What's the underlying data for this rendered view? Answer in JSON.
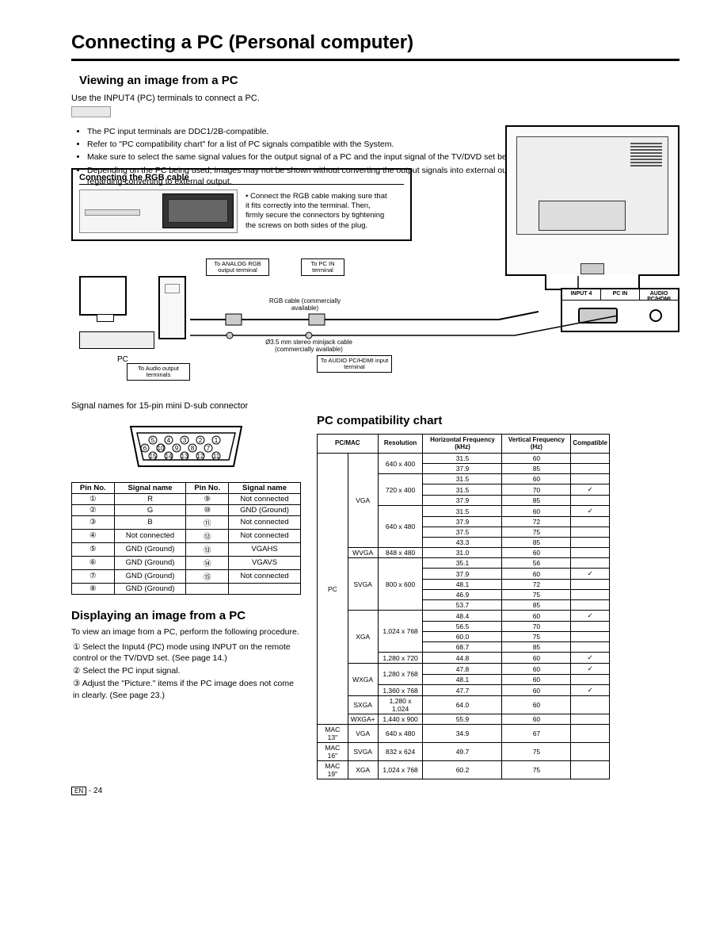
{
  "page_title": "Connecting a PC (Personal computer)",
  "section1": {
    "title": "Viewing an image from a PC",
    "intro": "Use the INPUT4 (PC) terminals to connect a PC.",
    "bullets": [
      "The PC input terminals are DDC1/2B-compatible.",
      "Refer to \"PC compatibility chart\" for a list of PC signals compatible with the System.",
      "Make sure to select the same signal values for the output signal of a PC and the input signal of the TV/DVD set before connecting with the PC. (See page 23.)",
      "Depending on the PC being used, images may not be shown without converting the output signals into external output. Please refer to your PC's manuals regarding converting to external output."
    ]
  },
  "rgb_box": {
    "title": "Connecting the RGB cable",
    "text": "Connect the RGB cable making sure that it fits correctly into the terminal. Then, firmly secure the connectors by tightening the screws on both sides of the plug."
  },
  "diagram": {
    "pc_label": "PC",
    "callout_rgb_out": "To ANALOG RGB output terminal",
    "callout_pc_in": "To PC IN terminal",
    "callout_audio_out": "To Audio output terminals",
    "callout_audio_in": "To AUDIO PC/HDMI input terminal",
    "wire_rgb": "RGB cable (commercially available)",
    "wire_audio": "Ø3.5 mm stereo minijack cable (commercially available)",
    "panel_labels": [
      "INPUT 4",
      "PC IN",
      "AUDIO PC/HDMI"
    ]
  },
  "connector_caption": "Signal names for 15-pin mini D-sub connector",
  "pin_table": {
    "headers": [
      "Pin No.",
      "Signal name",
      "Pin No.",
      "Signal name"
    ],
    "rows": [
      [
        "①",
        "R",
        "⑨",
        "Not connected"
      ],
      [
        "②",
        "G",
        "⑩",
        "GND (Ground)"
      ],
      [
        "③",
        "B",
        "⑪",
        "Not connected"
      ],
      [
        "④",
        "Not connected",
        "⑫",
        "Not connected"
      ],
      [
        "⑤",
        "GND (Ground)",
        "⑬",
        "VGAHS"
      ],
      [
        "⑥",
        "GND (Ground)",
        "⑭",
        "VGAVS"
      ],
      [
        "⑦",
        "GND (Ground)",
        "⑮",
        "Not connected"
      ],
      [
        "⑧",
        "GND (Ground)",
        "",
        ""
      ]
    ]
  },
  "section2": {
    "title": "Displaying an image from a PC",
    "intro": "To view an image from a PC, perform the following procedure.",
    "steps": [
      "① Select the Input4 (PC) mode using INPUT on the remote control or the TV/DVD set. (See page 14.)",
      "② Select the PC input signal.",
      "③ Adjust the \"Picture.\" items if the PC image does not come in clearly. (See page 23.)"
    ]
  },
  "compat": {
    "title": "PC compatibility chart",
    "headers": [
      "PC/MAC",
      "",
      "Resolution",
      "Horizontal Frequency (kHz)",
      "Vertical Frequency (Hz)",
      "Compatible"
    ],
    "rows": [
      [
        "PC",
        "VGA",
        "640 x 400",
        "31.5",
        "60",
        ""
      ],
      [
        "",
        "",
        "",
        "37.9",
        "85",
        ""
      ],
      [
        "",
        "",
        "720 x 400",
        "31.5",
        "60",
        ""
      ],
      [
        "",
        "",
        "",
        "31.5",
        "70",
        "✓"
      ],
      [
        "",
        "",
        "",
        "37.9",
        "85",
        ""
      ],
      [
        "",
        "",
        "640 x 480",
        "31.5",
        "60",
        "✓"
      ],
      [
        "",
        "",
        "",
        "37.9",
        "72",
        ""
      ],
      [
        "",
        "",
        "",
        "37.5",
        "75",
        ""
      ],
      [
        "",
        "",
        "",
        "43.3",
        "85",
        ""
      ],
      [
        "",
        "WVGA",
        "848 x 480",
        "31.0",
        "60",
        ""
      ],
      [
        "",
        "SVGA",
        "800 x 600",
        "35.1",
        "56",
        ""
      ],
      [
        "",
        "",
        "",
        "37.9",
        "60",
        "✓"
      ],
      [
        "",
        "",
        "",
        "48.1",
        "72",
        ""
      ],
      [
        "",
        "",
        "",
        "46.9",
        "75",
        ""
      ],
      [
        "",
        "",
        "",
        "53.7",
        "85",
        ""
      ],
      [
        "",
        "XGA",
        "1,024 x 768",
        "48.4",
        "60",
        "✓"
      ],
      [
        "",
        "",
        "",
        "56.5",
        "70",
        ""
      ],
      [
        "",
        "",
        "",
        "60.0",
        "75",
        ""
      ],
      [
        "",
        "",
        "",
        "68.7",
        "85",
        ""
      ],
      [
        "",
        "",
        "1,280 x 720",
        "44.8",
        "60",
        "✓"
      ],
      [
        "",
        "WXGA",
        "1,280 x 768",
        "47.8",
        "60",
        "✓"
      ],
      [
        "",
        "",
        "",
        "48.1",
        "60",
        ""
      ],
      [
        "",
        "",
        "1,360 x 768",
        "47.7",
        "60",
        "✓"
      ],
      [
        "",
        "SXGA",
        "1,280 x 1,024",
        "64.0",
        "60",
        ""
      ],
      [
        "",
        "WXGA+",
        "1,440 x 900",
        "55.9",
        "60",
        ""
      ],
      [
        "MAC 13\"",
        "VGA",
        "640 x 480",
        "34.9",
        "67",
        ""
      ],
      [
        "MAC 16\"",
        "SVGA",
        "832 x 624",
        "49.7",
        "75",
        ""
      ],
      [
        "MAC 19\"",
        "XGA",
        "1,024 x 768",
        "60.2",
        "75",
        ""
      ]
    ],
    "rowspans": {
      "pc_mac_pc": 25,
      "vga": 9,
      "res_640x400": 2,
      "res_720x400": 3,
      "res_640x480": 4,
      "wvga": 1,
      "svga": 5,
      "res_800x600": 5,
      "xga": 4,
      "res_1024x768": 4,
      "wxga": 4,
      "res_1280x768": 2
    }
  },
  "page_number": "24",
  "page_lang": "EN",
  "watermark": "",
  "colors": {
    "text": "#000000",
    "bg": "#ffffff",
    "border": "#000000",
    "gray_fill": "#e8e8e8"
  }
}
